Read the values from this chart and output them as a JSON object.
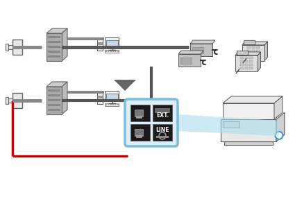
{
  "bg_color": "#ffffff",
  "line_gray": "#888888",
  "line_gray2": "#555555",
  "line_red": "#cc0000",
  "line_dark": "#333333",
  "box_blue_border": "#7bbcda",
  "box_fill": "#ddeef8",
  "text_ext": "EXT.",
  "text_line": "LINE",
  "wall_fill": "#e8e8e8",
  "wall_stroke": "#666666",
  "modem_top": "#cccccc",
  "modem_front": "#aaaaaa",
  "modem_side": "#bbbbbb",
  "pc_fill": "#eeeeee",
  "pc_stroke": "#555555",
  "pc_screen": "#c8d8e8",
  "phone_fill": "#e0e0e0",
  "phone_stroke": "#444444",
  "printer_fill": "#e8e8e8",
  "printer_stroke": "#555555",
  "panel_fill": "#1a1a1a",
  "arrow_fill": "#666666",
  "beam_fill": "#aaddee",
  "blue_circle": "#3399cc"
}
